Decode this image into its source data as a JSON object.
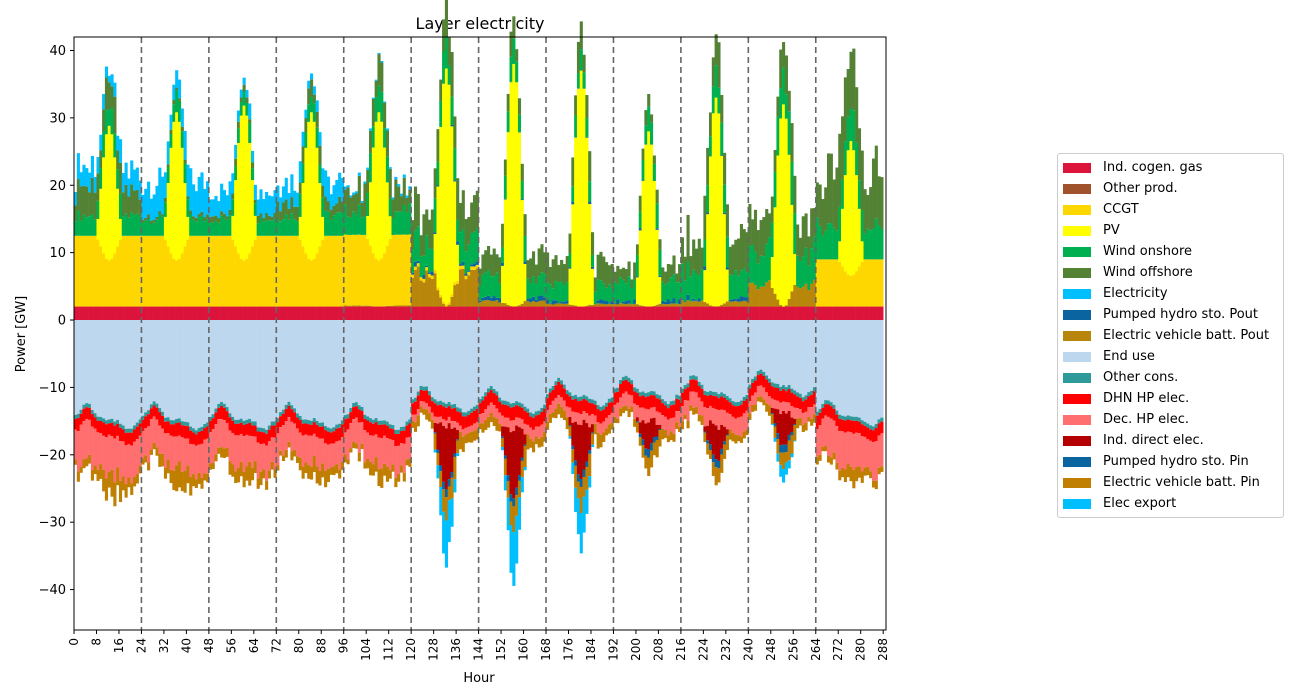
{
  "chart_data": {
    "type": "area",
    "title": "Layer electricity",
    "xlabel": "Hour",
    "ylabel": "Power [GW]",
    "xlim": [
      0,
      289
    ],
    "ylim": [
      -46,
      42
    ],
    "x_ticks": [
      0,
      8,
      16,
      24,
      32,
      40,
      48,
      56,
      64,
      72,
      80,
      88,
      96,
      104,
      112,
      120,
      128,
      136,
      144,
      152,
      160,
      168,
      176,
      184,
      192,
      200,
      208,
      216,
      224,
      232,
      240,
      248,
      256,
      264,
      272,
      280,
      288
    ],
    "y_ticks": [
      -40,
      -30,
      -20,
      -10,
      0,
      10,
      20,
      30,
      40
    ],
    "day_separators": [
      24,
      48,
      72,
      96,
      120,
      144,
      168,
      192,
      216,
      240,
      264
    ],
    "grid": false,
    "legend_position": "right",
    "daily_profiles": {
      "days": [
        "1",
        "2",
        "3",
        "4",
        "5",
        "6",
        "7",
        "8",
        "9",
        "10",
        "11",
        "12"
      ],
      "pv_peak": [
        20,
        22,
        23,
        22,
        22,
        35,
        36,
        35,
        26,
        31,
        30,
        20
      ],
      "wind_onshore": [
        3.0,
        2.5,
        2.5,
        3.0,
        3.5,
        4.0,
        3.0,
        2.5,
        3.0,
        4.0,
        5.0,
        5.0
      ],
      "wind_offshore": [
        4.0,
        0.5,
        0.8,
        2.0,
        3.5,
        5.0,
        3.0,
        3.5,
        2.0,
        5.0,
        4.5,
        8.0
      ],
      "electricity_import": [
        4.0,
        6.5,
        4.5,
        4.0,
        0.5,
        0.0,
        0.0,
        0.0,
        0.0,
        0.0,
        0.0,
        0.0
      ],
      "ccgt_level": [
        10.5,
        10.5,
        10.5,
        10.5,
        10.5,
        0.5,
        0.0,
        0.0,
        0.0,
        0.0,
        0.0,
        7.0
      ],
      "ev_battery_pout": [
        0.0,
        0.0,
        0.0,
        0.0,
        0.2,
        6.0,
        1.0,
        0.5,
        0.5,
        1.0,
        4.0,
        0.0
      ],
      "industrial_cogen_gas": 2.0,
      "end_use_base": [
        14.5,
        14.5,
        14.5,
        14.5,
        14.5,
        12.0,
        12.0,
        11.0,
        10.5,
        10.5,
        9.5,
        14.0
      ],
      "dec_hp_elec": [
        5.5,
        4.5,
        4.5,
        4.0,
        4.0,
        1.0,
        1.5,
        1.5,
        2.0,
        2.5,
        1.5,
        5.0
      ],
      "ind_direct_elec_peak": [
        0.0,
        0.0,
        0.0,
        0.0,
        0.0,
        9.0,
        10.0,
        8.0,
        4.0,
        5.0,
        5.0,
        0.0
      ],
      "ev_battery_pin_peak": [
        4.0,
        4.0,
        4.0,
        3.5,
        3.0,
        4.0,
        4.0,
        4.0,
        3.0,
        3.0,
        3.0,
        3.0
      ],
      "elec_export_peak": [
        0.0,
        0.0,
        0.0,
        0.0,
        0.0,
        7.0,
        8.0,
        6.0,
        0.0,
        0.0,
        2.0,
        0.0
      ]
    },
    "series": [
      {
        "name": "Ind. cogen. gas",
        "color": "#dc143c"
      },
      {
        "name": "Other prod.",
        "color": "#a0522d"
      },
      {
        "name": "CCGT",
        "color": "#ffd700"
      },
      {
        "name": "PV",
        "color": "#ffff00"
      },
      {
        "name": "Wind onshore",
        "color": "#00b050"
      },
      {
        "name": "Wind offshore",
        "color": "#548235"
      },
      {
        "name": "Electricity",
        "color": "#00bfff"
      },
      {
        "name": "Pumped hydro sto. Pout",
        "color": "#0a64a0"
      },
      {
        "name": "Electric vehicle batt. Pout",
        "color": "#b8860b"
      },
      {
        "name": "End use",
        "color": "#bdd7ee"
      },
      {
        "name": "Other cons.",
        "color": "#2e9a9a"
      },
      {
        "name": "DHN HP elec.",
        "color": "#ff0000"
      },
      {
        "name": "Dec. HP elec.",
        "color": "#ff6f6f"
      },
      {
        "name": "Ind. direct elec.",
        "color": "#b50000"
      },
      {
        "name": "Pumped hydro sto. Pin",
        "color": "#0a64a0"
      },
      {
        "name": "Electric vehicle batt. Pin",
        "color": "#c07f00"
      },
      {
        "name": "Elec export",
        "color": "#00bfff"
      }
    ]
  }
}
